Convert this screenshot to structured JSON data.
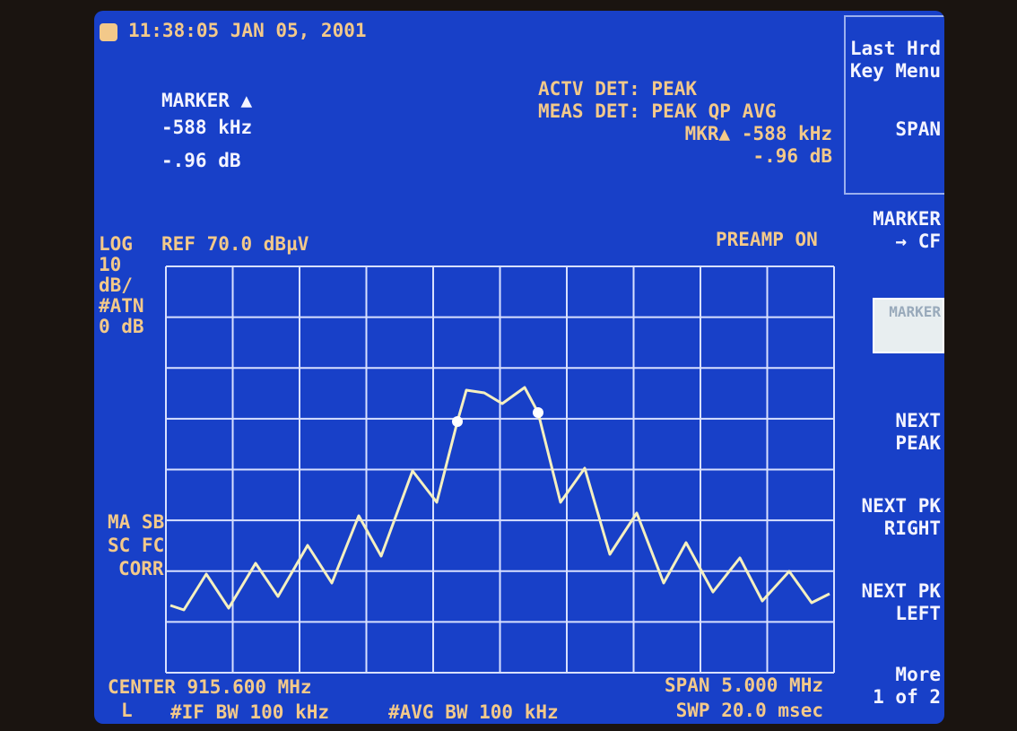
{
  "header": {
    "time": "11:38:05 JAN 05, 2001"
  },
  "marker": {
    "title": "MARKER ▲",
    "freq": "-588 kHz",
    "amp": "-.96 dB"
  },
  "detector": {
    "actv": "ACTV DET: PEAK",
    "meas": "MEAS DET: PEAK QP AVG",
    "mkr": "MKR▲ -588 kHz",
    "mkr_amp": "-.96 dB"
  },
  "scale": {
    "lines": [
      "LOG",
      "10",
      "dB/",
      "#ATN",
      "0 dB"
    ],
    "ref": "REF 70.0 dBµV",
    "preamp": "PREAMP ON"
  },
  "corr": [
    "MA SB",
    "SC FC",
    "CORR"
  ],
  "footer": {
    "center": "CENTER 915.600 MHz",
    "mode": "L",
    "if_bw": "#IF BW 100 kHz",
    "avg_bw": "#AVG BW 100 kHz",
    "span": "SPAN 5.000 MHz",
    "swp": "SWP 20.0 msec"
  },
  "softkeys": [
    [
      "Last Hrd",
      "Key Menu"
    ],
    [
      "SPAN"
    ],
    [
      "MARKER",
      "→ CF"
    ],
    [
      "MARKER"
    ],
    [
      "NEXT",
      "PEAK"
    ],
    [
      "NEXT PK",
      "RIGHT"
    ],
    [
      "NEXT PK",
      "LEFT"
    ],
    [
      "More",
      "1 of 2"
    ]
  ]
}
